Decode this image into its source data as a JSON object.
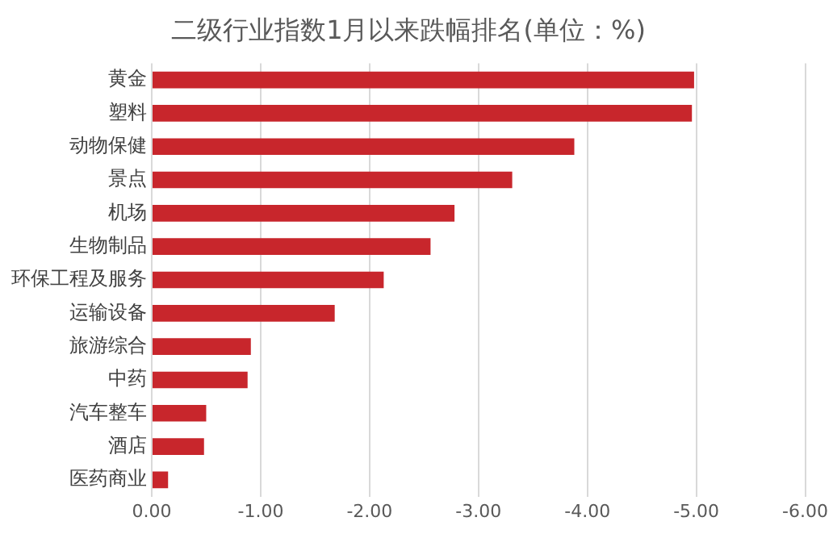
{
  "chart_data": {
    "type": "bar",
    "orientation": "horizontal",
    "title": "二级行业指数1月以来跌幅排名(单位：%)",
    "categories": [
      "黄金",
      "塑料",
      "动物保健",
      "景点",
      "机场",
      "生物制品",
      "环保工程及服务",
      "运输设备",
      "旅游综合",
      "中药",
      "汽车整车",
      "酒店",
      "医药商业"
    ],
    "values": [
      -4.98,
      -4.96,
      -3.88,
      -3.31,
      -2.78,
      -2.56,
      -2.13,
      -1.68,
      -0.91,
      -0.88,
      -0.5,
      -0.48,
      -0.15
    ],
    "color": "#c8262c",
    "xlim": [
      0,
      -6
    ],
    "xticks": [
      {
        "value": 0,
        "label": "0.00"
      },
      {
        "value": -1,
        "label": "-1.00"
      },
      {
        "value": -2,
        "label": "-2.00"
      },
      {
        "value": -3,
        "label": "-3.00"
      },
      {
        "value": -4,
        "label": "-4.00"
      },
      {
        "value": -5,
        "label": "-5.00"
      },
      {
        "value": -6,
        "label": "-6.00"
      }
    ],
    "grid": "x",
    "legend": false
  }
}
